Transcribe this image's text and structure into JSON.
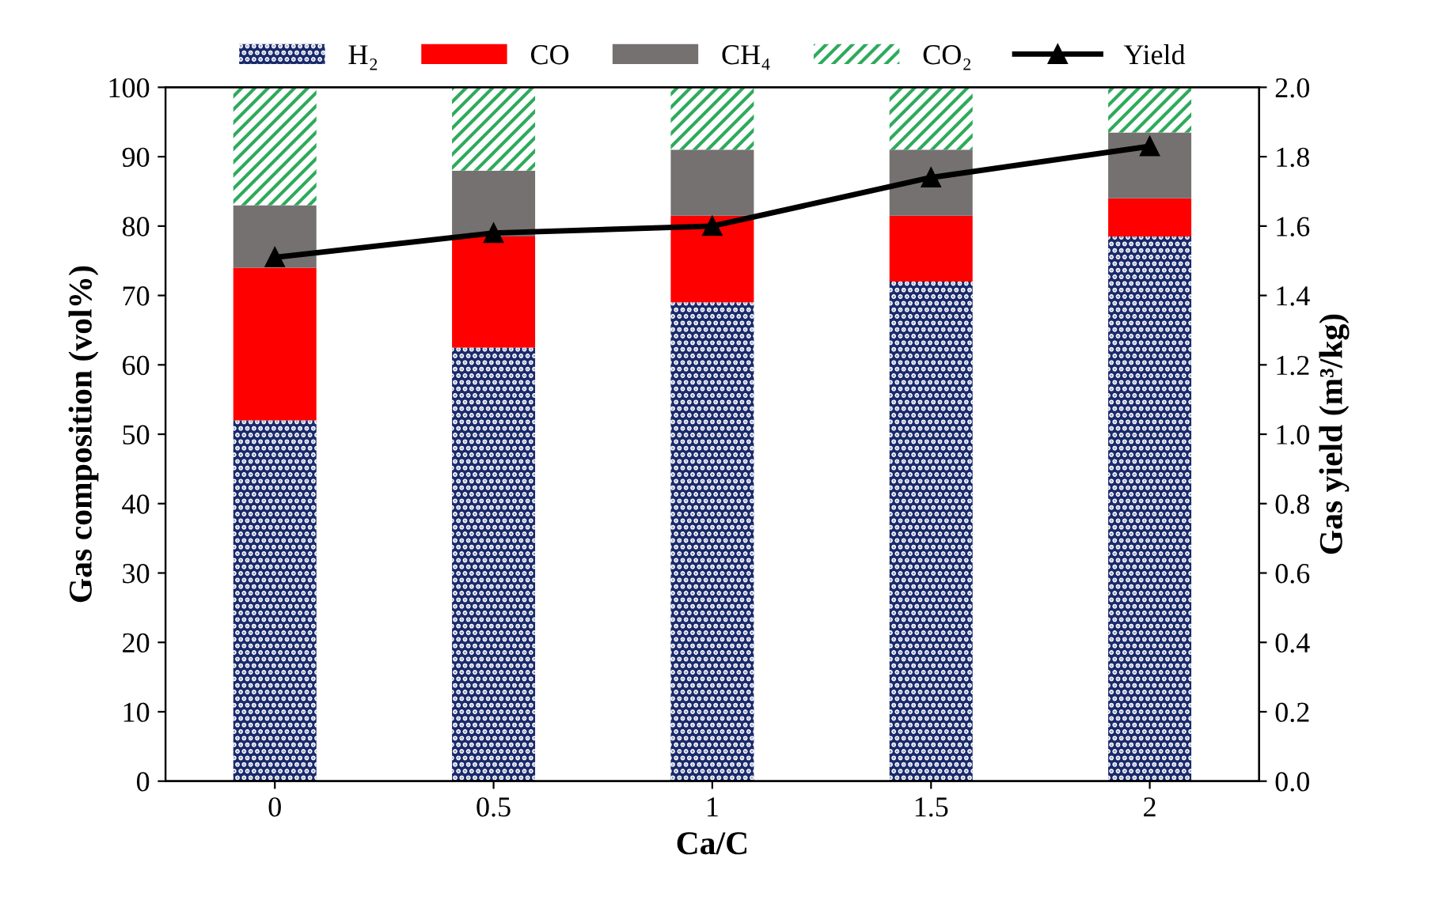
{
  "chart_data": {
    "type": "bar",
    "stacked": true,
    "categories": [
      "0",
      "0.5",
      "1",
      "1.5",
      "2"
    ],
    "xlabel": "Ca/C",
    "ylabel": "Gas composition (vol%)",
    "y2label": "Gas yield (m³/kg)",
    "ylim": [
      0,
      100
    ],
    "yticks": [
      0,
      10,
      20,
      30,
      40,
      50,
      60,
      70,
      80,
      90,
      100
    ],
    "y2lim": [
      0,
      2
    ],
    "y2ticks": [
      {
        "value": 0,
        "label": "0.0"
      },
      {
        "value": 0.2,
        "label": "0.2"
      },
      {
        "value": 0.4,
        "label": "0.4"
      },
      {
        "value": 0.6,
        "label": "0.6"
      },
      {
        "value": 0.8,
        "label": "0.8"
      },
      {
        "value": 1,
        "label": "1.0"
      },
      {
        "value": 1.2,
        "label": "1.2"
      },
      {
        "value": 1.4,
        "label": "1.4"
      },
      {
        "value": 1.6,
        "label": "1.6"
      },
      {
        "value": 1.8,
        "label": "1.8"
      },
      {
        "value": 2,
        "label": "2.0"
      }
    ],
    "legend": "top",
    "grid": false,
    "series": [
      {
        "name": "H₂",
        "color": "#1a2a6c",
        "values": [
          52,
          62.5,
          69,
          72,
          78.5
        ]
      },
      {
        "name": "CO",
        "color": "#ff0000",
        "values": [
          22,
          16,
          12.5,
          9.5,
          5.5
        ]
      },
      {
        "name": "CH₄",
        "color": "#767171",
        "values": [
          9,
          9.5,
          9.5,
          9.5,
          9.5
        ]
      },
      {
        "name": "CO₂",
        "color": "#2eaa5c",
        "values": [
          17,
          12,
          9,
          9,
          6.5
        ]
      },
      {
        "name": "Yield",
        "type": "line",
        "axis": "y2",
        "color": "#000000",
        "marker": "triangle",
        "values": [
          1.51,
          1.58,
          1.6,
          1.74,
          1.83
        ]
      }
    ]
  }
}
